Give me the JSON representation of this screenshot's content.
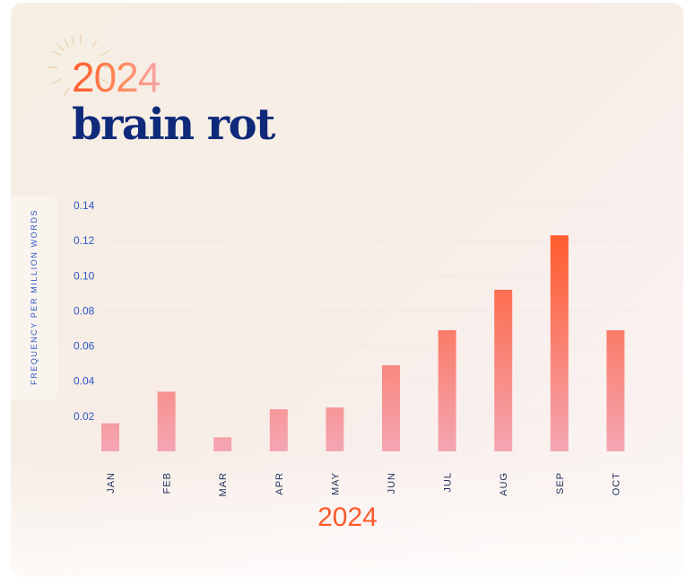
{
  "header": {
    "year": "2024",
    "word": "brain rot"
  },
  "chart_data": {
    "type": "bar",
    "title": "brain rot",
    "subtitle": "2024",
    "ylabel": "FREQUENCY PER MILLION WORDS",
    "xlabel": "2024",
    "categories": [
      "JAN",
      "FEB",
      "MAR",
      "APR",
      "MAY",
      "JUN",
      "JUL",
      "AUG",
      "SEP",
      "OCT"
    ],
    "values": [
      0.016,
      0.034,
      0.008,
      0.024,
      0.025,
      0.049,
      0.069,
      0.092,
      0.123,
      0.069
    ],
    "ylim": [
      0,
      0.14
    ],
    "yticks": [
      "0.02",
      "0.04",
      "0.06",
      "0.08",
      "0.10",
      "0.12",
      "0.14"
    ],
    "grid": true,
    "colors": {
      "low": "#f4a6b3",
      "high": "#ff5a2b",
      "axis_text": "#2f57c8",
      "category_text": "#1f2d5c"
    }
  }
}
